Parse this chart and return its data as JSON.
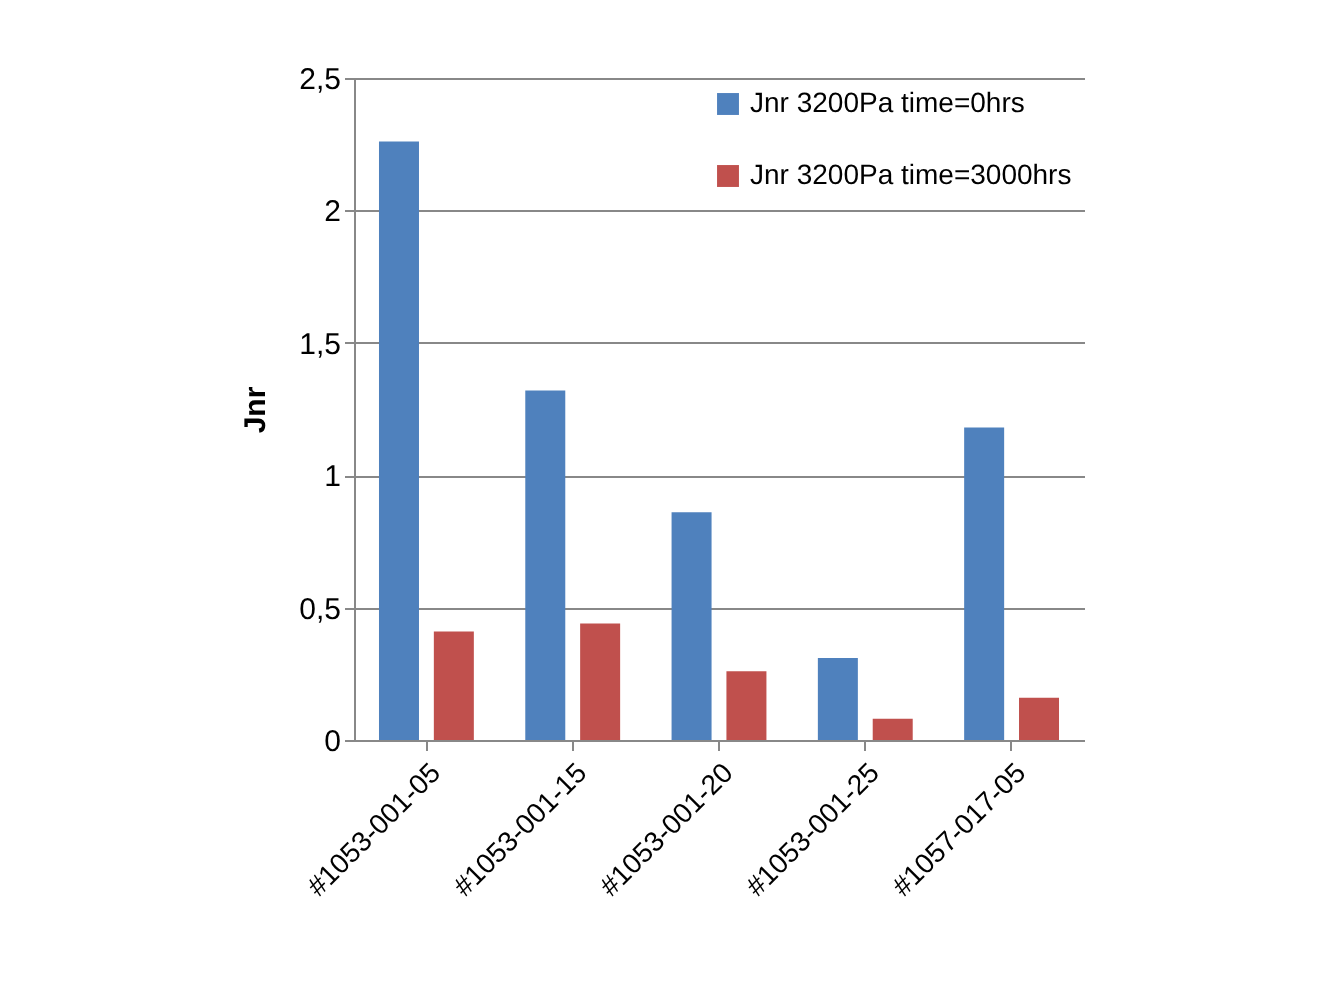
{
  "chart_data": {
    "type": "bar",
    "ylabel": "Jnr",
    "categories": [
      "#1053-001-05",
      "#1053-001-15",
      "#1053-001-20",
      "#1053-001-25",
      "#1057-017-05"
    ],
    "series": [
      {
        "name": "Jnr 3200Pa time=0hrs",
        "color": "#4f81bd",
        "values": [
          2.26,
          1.32,
          0.86,
          0.31,
          1.18
        ]
      },
      {
        "name": "Jnr 3200Pa time=3000hrs",
        "color": "#c0504d",
        "values": [
          0.41,
          0.44,
          0.26,
          0.08,
          0.16
        ]
      }
    ],
    "ylim": [
      0,
      2.5
    ],
    "yticks": [
      0,
      {
        "value": 0.5,
        "label": "0,5"
      },
      1,
      {
        "value": 1.5,
        "label": "1,5"
      },
      2,
      {
        "value": 2.5,
        "label": "2,5"
      }
    ],
    "grid": "y",
    "legend": "top right"
  }
}
